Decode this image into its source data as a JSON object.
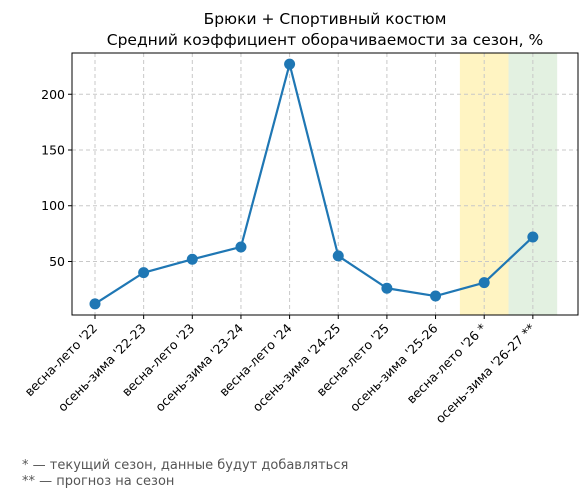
{
  "chart_data": {
    "type": "line",
    "title": "Брюки + Спортивный костюм",
    "subtitle": "Средний коэффициент оборачиваемости за сезон, %",
    "xlabel": "",
    "ylabel": "",
    "categories": [
      "весна-лето '22",
      "осень-зима '22-23",
      "весна-лето '23",
      "осень-зима '23-24",
      "весна-лето '24",
      "осень-зима '24-25",
      "весна-лето '25",
      "осень-зима '25-26",
      "весна-лето '26 *",
      "осень-зима '26-27 **"
    ],
    "series": [
      {
        "values": [
          12,
          40,
          52,
          63,
          227,
          55,
          26,
          19,
          31,
          72
        ]
      }
    ],
    "ylim": [
      2,
      237
    ],
    "yticks": [
      50,
      100,
      150,
      200
    ],
    "ytick_labels": [
      "50",
      "100",
      "150",
      "200"
    ],
    "grid": true,
    "line_color": "#1f77b4",
    "highlights": [
      {
        "category": "весна-лето '26 *",
        "color": "#fff4c2"
      },
      {
        "category": "осень-зима '26-27 **",
        "color": "#e3f1e1"
      }
    ],
    "footnotes": [
      "* — текущий сезон, данные будут добавляться",
      "** — прогноз на сезон"
    ]
  }
}
